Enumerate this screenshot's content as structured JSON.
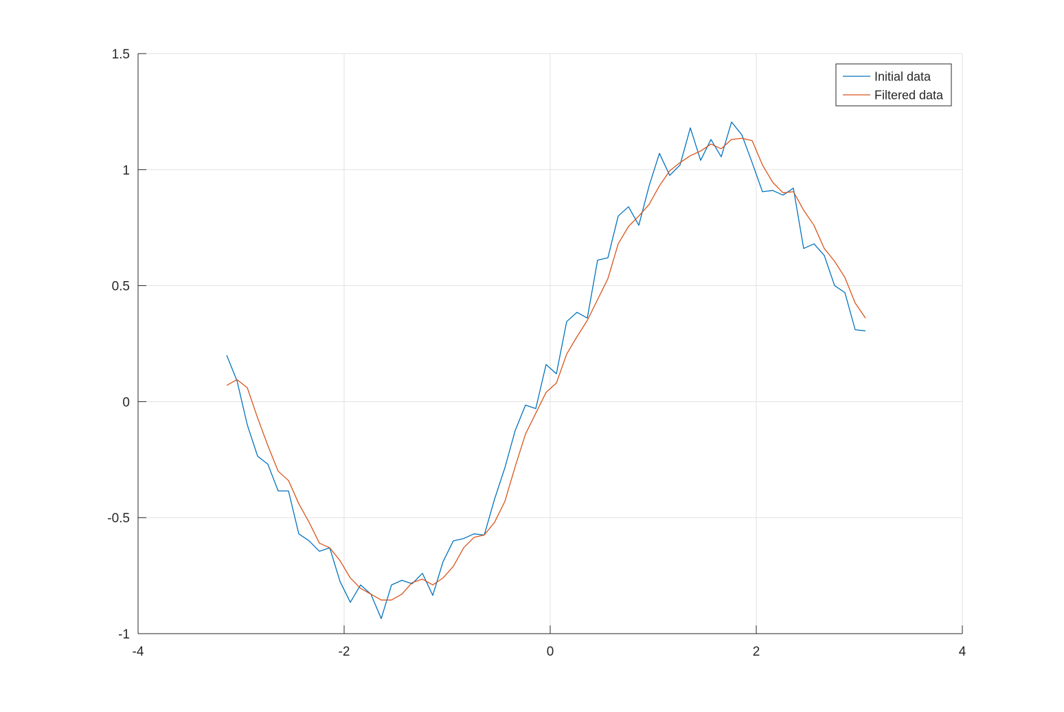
{
  "chart_data": {
    "type": "line",
    "title": "",
    "xlabel": "",
    "ylabel": "",
    "xlim": [
      -4,
      4
    ],
    "ylim": [
      -1,
      1.5
    ],
    "xticks": [
      -4,
      -2,
      0,
      2,
      4
    ],
    "xtick_labels": [
      "-4",
      "-2",
      "0",
      "2",
      "4"
    ],
    "yticks": [
      -1,
      -0.5,
      0,
      0.5,
      1,
      1.5
    ],
    "ytick_labels": [
      "-1",
      "-0.5",
      "0",
      "0.5",
      "1",
      "1.5"
    ],
    "grid": true,
    "legend": {
      "placement": "top-right",
      "entries": [
        "Initial data",
        "Filtered data"
      ]
    },
    "x": [
      -3.14,
      -3.04,
      -2.94,
      -2.84,
      -2.74,
      -2.64,
      -2.54,
      -2.44,
      -2.34,
      -2.24,
      -2.14,
      -2.04,
      -1.94,
      -1.84,
      -1.74,
      -1.64,
      -1.54,
      -1.44,
      -1.34,
      -1.24,
      -1.14,
      -1.04,
      -0.94,
      -0.84,
      -0.74,
      -0.64,
      -0.54,
      -0.44,
      -0.34,
      -0.24,
      -0.14,
      -0.04,
      0.06,
      0.16,
      0.26,
      0.36,
      0.46,
      0.56,
      0.66,
      0.76,
      0.86,
      0.96,
      1.06,
      1.16,
      1.26,
      1.36,
      1.46,
      1.56,
      1.66,
      1.76,
      1.86,
      1.96,
      2.06,
      2.16,
      2.26,
      2.36,
      2.46,
      2.56,
      2.66,
      2.76,
      2.86,
      2.96,
      3.06
    ],
    "series": [
      {
        "name": "Initial data",
        "color": "#0072BD",
        "values": [
          0.2,
          0.09,
          -0.1,
          -0.235,
          -0.27,
          -0.385,
          -0.385,
          -0.57,
          -0.6,
          -0.645,
          -0.63,
          -0.775,
          -0.865,
          -0.79,
          -0.83,
          -0.935,
          -0.79,
          -0.77,
          -0.785,
          -0.74,
          -0.835,
          -0.69,
          -0.6,
          -0.59,
          -0.57,
          -0.575,
          -0.42,
          -0.285,
          -0.125,
          -0.015,
          -0.03,
          0.16,
          0.12,
          0.345,
          0.385,
          0.36,
          0.61,
          0.62,
          0.8,
          0.84,
          0.76,
          0.93,
          1.07,
          0.975,
          1.02,
          1.18,
          1.04,
          1.13,
          1.055,
          1.205,
          1.15,
          1.03,
          0.905,
          0.91,
          0.89,
          0.92,
          0.66,
          0.68,
          0.63,
          0.5,
          0.47,
          0.31,
          0.305
        ]
      },
      {
        "name": "Filtered data",
        "color": "#D95319",
        "values": [
          0.07,
          0.095,
          0.06,
          -0.07,
          -0.19,
          -0.3,
          -0.34,
          -0.44,
          -0.52,
          -0.61,
          -0.63,
          -0.685,
          -0.76,
          -0.805,
          -0.83,
          -0.855,
          -0.855,
          -0.83,
          -0.78,
          -0.765,
          -0.79,
          -0.76,
          -0.71,
          -0.63,
          -0.585,
          -0.575,
          -0.52,
          -0.43,
          -0.28,
          -0.14,
          -0.05,
          0.04,
          0.08,
          0.205,
          0.28,
          0.35,
          0.44,
          0.53,
          0.68,
          0.755,
          0.8,
          0.85,
          0.93,
          0.995,
          1.03,
          1.06,
          1.08,
          1.11,
          1.09,
          1.13,
          1.135,
          1.125,
          1.02,
          0.945,
          0.9,
          0.905,
          0.825,
          0.76,
          0.66,
          0.605,
          0.535,
          0.425,
          0.36
        ]
      }
    ]
  }
}
